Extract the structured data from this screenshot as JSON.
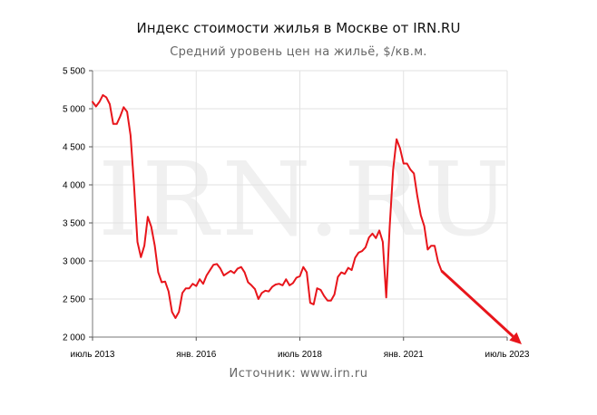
{
  "chart_data": {
    "type": "line",
    "title": "Индекс стоимости жилья в Москве от IRN.RU",
    "subtitle": "Средний уровень цен на жильё, $/кв.м.",
    "source": "Источник: www.irn.ru",
    "watermark": "IRN.RU",
    "xlabel": "",
    "ylabel": "",
    "ylim": [
      2000,
      5500
    ],
    "yticks": [
      2000,
      2500,
      3000,
      3500,
      4000,
      4500,
      5000,
      5500
    ],
    "ytick_labels": [
      "2 000",
      "2 500",
      "3 000",
      "3 500",
      "4 000",
      "4 500",
      "5 000",
      "5 500"
    ],
    "xlim": [
      "2013-07",
      "2023-07"
    ],
    "xticks": [
      {
        "date": "2013-07",
        "label": "июль 2013"
      },
      {
        "date": "2016-01",
        "label": "янв. 2016"
      },
      {
        "date": "2018-07",
        "label": "июль 2018"
      },
      {
        "date": "2021-01",
        "label": "янв. 2021"
      },
      {
        "date": "2023-07",
        "label": "июль 2023"
      }
    ],
    "grid": true,
    "line_color": "#e8151b",
    "arrow_color": "#e8151b",
    "series": [
      {
        "points": [
          [
            "2013-07",
            5090
          ],
          [
            "2013-08",
            5030
          ],
          [
            "2013-09",
            5090
          ],
          [
            "2013-10",
            5180
          ],
          [
            "2013-11",
            5150
          ],
          [
            "2013-12",
            5060
          ],
          [
            "2014-01",
            4800
          ],
          [
            "2014-02",
            4800
          ],
          [
            "2014-03",
            4900
          ],
          [
            "2014-04",
            5020
          ],
          [
            "2014-05",
            4960
          ],
          [
            "2014-06",
            4650
          ],
          [
            "2014-07",
            4000
          ],
          [
            "2014-08",
            3250
          ],
          [
            "2014-09",
            3050
          ],
          [
            "2014-10",
            3200
          ],
          [
            "2014-11",
            3580
          ],
          [
            "2014-12",
            3450
          ],
          [
            "2015-01",
            3200
          ],
          [
            "2015-02",
            2850
          ],
          [
            "2015-03",
            2720
          ],
          [
            "2015-04",
            2730
          ],
          [
            "2015-05",
            2600
          ],
          [
            "2015-06",
            2330
          ],
          [
            "2015-07",
            2250
          ],
          [
            "2015-08",
            2330
          ],
          [
            "2015-09",
            2580
          ],
          [
            "2015-10",
            2640
          ],
          [
            "2015-11",
            2640
          ],
          [
            "2015-12",
            2700
          ],
          [
            "2016-01",
            2670
          ],
          [
            "2016-02",
            2760
          ],
          [
            "2016-03",
            2700
          ],
          [
            "2016-04",
            2810
          ],
          [
            "2016-05",
            2880
          ],
          [
            "2016-06",
            2950
          ],
          [
            "2016-07",
            2960
          ],
          [
            "2016-08",
            2900
          ],
          [
            "2016-09",
            2810
          ],
          [
            "2016-10",
            2840
          ],
          [
            "2016-11",
            2870
          ],
          [
            "2016-12",
            2840
          ],
          [
            "2017-01",
            2900
          ],
          [
            "2017-02",
            2920
          ],
          [
            "2017-03",
            2850
          ],
          [
            "2017-04",
            2720
          ],
          [
            "2017-05",
            2680
          ],
          [
            "2017-06",
            2630
          ],
          [
            "2017-07",
            2500
          ],
          [
            "2017-08",
            2580
          ],
          [
            "2017-09",
            2610
          ],
          [
            "2017-10",
            2600
          ],
          [
            "2017-11",
            2660
          ],
          [
            "2017-12",
            2690
          ],
          [
            "2018-01",
            2700
          ],
          [
            "2018-02",
            2680
          ],
          [
            "2018-03",
            2760
          ],
          [
            "2018-04",
            2680
          ],
          [
            "2018-05",
            2710
          ],
          [
            "2018-06",
            2780
          ],
          [
            "2018-07",
            2800
          ],
          [
            "2018-08",
            2920
          ],
          [
            "2018-09",
            2850
          ],
          [
            "2018-10",
            2450
          ],
          [
            "2018-11",
            2430
          ],
          [
            "2018-12",
            2640
          ],
          [
            "2019-01",
            2620
          ],
          [
            "2019-02",
            2540
          ],
          [
            "2019-03",
            2480
          ],
          [
            "2019-04",
            2480
          ],
          [
            "2019-05",
            2560
          ],
          [
            "2019-06",
            2790
          ],
          [
            "2019-07",
            2850
          ],
          [
            "2019-08",
            2830
          ],
          [
            "2019-09",
            2910
          ],
          [
            "2019-10",
            2880
          ],
          [
            "2019-11",
            3040
          ],
          [
            "2019-12",
            3110
          ],
          [
            "2020-01",
            3130
          ],
          [
            "2020-02",
            3180
          ],
          [
            "2020-03",
            3310
          ],
          [
            "2020-04",
            3360
          ],
          [
            "2020-05",
            3300
          ],
          [
            "2020-06",
            3400
          ],
          [
            "2020-07",
            3250
          ],
          [
            "2020-08",
            2520
          ],
          [
            "2020-09",
            3450
          ],
          [
            "2020-10",
            4200
          ],
          [
            "2020-11",
            4600
          ],
          [
            "2020-12",
            4480
          ],
          [
            "2021-01",
            4280
          ],
          [
            "2021-02",
            4280
          ],
          [
            "2021-03",
            4200
          ],
          [
            "2021-04",
            4150
          ],
          [
            "2021-05",
            3850
          ],
          [
            "2021-06",
            3600
          ],
          [
            "2021-07",
            3460
          ],
          [
            "2021-08",
            3150
          ],
          [
            "2021-09",
            3200
          ],
          [
            "2021-10",
            3200
          ],
          [
            "2021-11",
            2990
          ],
          [
            "2021-12",
            2870
          ]
        ]
      }
    ],
    "arrow": {
      "from": [
        "2021-12",
        2870
      ],
      "to": [
        "2023-07",
        2000
      ]
    }
  }
}
